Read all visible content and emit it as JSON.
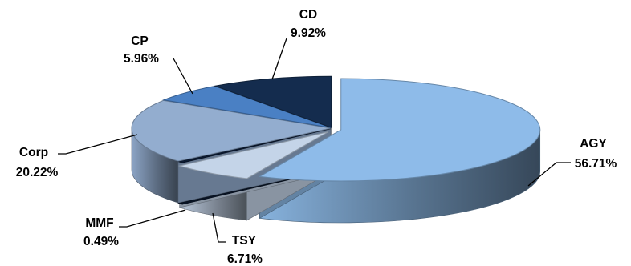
{
  "chart_data": {
    "type": "pie",
    "title": "",
    "style": "3d-exploded",
    "slices": [
      {
        "label": "AGY",
        "value_label": "56.71%",
        "value": 56.71,
        "color": "#8ebbe9"
      },
      {
        "label": "TSY",
        "value_label": "6.71%",
        "value": 6.71,
        "color": "#c4d4e8"
      },
      {
        "label": "MMF",
        "value_label": "0.49%",
        "value": 0.49,
        "color": "#0b1b33"
      },
      {
        "label": "Corp",
        "value_label": "20.22%",
        "value": 20.22,
        "color": "#93adcf"
      },
      {
        "label": "CP",
        "value_label": "5.96%",
        "value": 5.96,
        "color": "#4a80c4"
      },
      {
        "label": "CD",
        "value_label": "9.92%",
        "value": 9.92,
        "color": "#142c4e"
      }
    ]
  }
}
